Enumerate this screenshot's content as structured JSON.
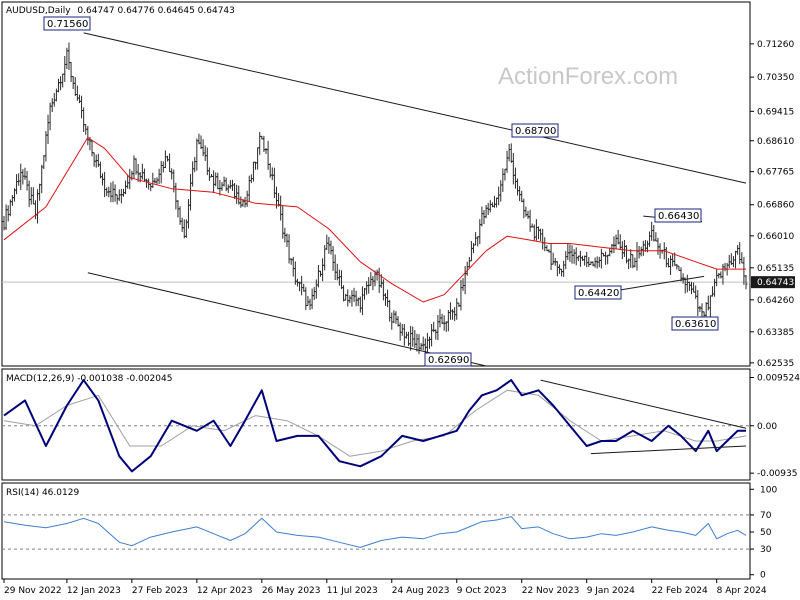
{
  "header": {
    "symbol": "AUDUSD,Daily",
    "ohlc": "0.64747  0.64776  0.64645  0.64743"
  },
  "watermark": "ActionForex.com",
  "colors": {
    "price_bars": "#2a2a2a",
    "ma_line": "#e01010",
    "macd_line": "#00007a",
    "signal_line": "#a0a0a0",
    "rsi_line": "#3f7fd0",
    "channel_line": "#1a1a1a",
    "callout_border": "#1a237e",
    "last_price_box": "#1a1a1a"
  },
  "price_axis": {
    "ticks": [
      "0.71260",
      "0.70350",
      "0.69415",
      "0.68610",
      "0.67765",
      "0.66860",
      "0.66010",
      "0.65135",
      "0.64260",
      "0.63385",
      "0.62535"
    ],
    "last_price": "0.64743"
  },
  "annotations": [
    {
      "label": "0.71560"
    },
    {
      "label": "0.68700"
    },
    {
      "label": "0.66430"
    },
    {
      "label": "0.64420"
    },
    {
      "label": "0.63610"
    },
    {
      "label": "0.62690"
    }
  ],
  "macd_panel": {
    "label": "MACD(12,26,9) -0.001038 -0.002045",
    "ticks": [
      "0.009524",
      "0.00",
      "-0.00935"
    ]
  },
  "rsi_panel": {
    "label": "RSI(14) 46.0129",
    "ticks": [
      "100",
      "70",
      "50",
      "30",
      "0"
    ]
  },
  "x_axis": {
    "labels": [
      "29 Nov 2022",
      "12 Jan 2023",
      "27 Feb 2023",
      "12 Apr 2023",
      "26 May 2023",
      "11 Jul 2023",
      "24 Aug 2023",
      "9 Oct 2023",
      "22 Nov 2023",
      "9 Jan 2024",
      "22 Feb 2024",
      "8 Apr 2024"
    ]
  },
  "chart_data": [
    {
      "type": "line",
      "panel": "price",
      "ylim": [
        0.6245,
        0.7235
      ],
      "x_start": 0,
      "x_end": 354,
      "x_tick_indices": [
        0,
        30,
        61,
        92,
        123,
        154,
        185,
        216,
        247,
        278,
        309,
        340
      ],
      "series": [
        {
          "kind": "price_close",
          "x": [
            0,
            8,
            15,
            22,
            30,
            40,
            48,
            55,
            62,
            70,
            78,
            86,
            92,
            100,
            108,
            115,
            123,
            130,
            138,
            146,
            154,
            162,
            170,
            177,
            185,
            193,
            200,
            208,
            216,
            222,
            228,
            235,
            241,
            247,
            252,
            258,
            264,
            270,
            278,
            285,
            292,
            300,
            309,
            317,
            323,
            328,
            333,
            337,
            340,
            345,
            350,
            354
          ],
          "values": [
            0.664,
            0.678,
            0.666,
            0.695,
            0.709,
            0.686,
            0.674,
            0.67,
            0.68,
            0.674,
            0.682,
            0.66,
            0.686,
            0.675,
            0.673,
            0.669,
            0.688,
            0.67,
            0.65,
            0.64,
            0.658,
            0.644,
            0.642,
            0.65,
            0.638,
            0.632,
            0.63,
            0.636,
            0.64,
            0.654,
            0.665,
            0.67,
            0.683,
            0.668,
            0.662,
            0.658,
            0.65,
            0.656,
            0.653,
            0.654,
            0.658,
            0.653,
            0.66,
            0.653,
            0.649,
            0.645,
            0.638,
            0.642,
            0.648,
            0.652,
            0.656,
            0.6474
          ]
        },
        {
          "kind": "moving_average",
          "x": [
            0,
            20,
            40,
            48,
            60,
            80,
            100,
            120,
            140,
            155,
            170,
            185,
            200,
            210,
            220,
            230,
            240,
            250,
            260,
            270,
            285,
            300,
            315,
            330,
            340,
            354
          ],
          "values": [
            0.659,
            0.668,
            0.687,
            0.684,
            0.676,
            0.673,
            0.672,
            0.669,
            0.668,
            0.662,
            0.653,
            0.647,
            0.642,
            0.644,
            0.65,
            0.656,
            0.66,
            0.659,
            0.658,
            0.658,
            0.657,
            0.656,
            0.656,
            0.653,
            0.651,
            0.651
          ]
        }
      ],
      "trendlines": [
        {
          "x": [
            38,
            354
          ],
          "values": [
            0.7156,
            0.6745
          ]
        },
        {
          "x": [
            40,
            230
          ],
          "values": [
            0.65,
            0.6245
          ]
        },
        {
          "x": [
            282,
            334
          ],
          "values": [
            0.6442,
            0.649
          ]
        },
        {
          "x": [
            305,
            333
          ],
          "values": [
            0.6655,
            0.664
          ]
        }
      ]
    },
    {
      "type": "line",
      "panel": "macd",
      "ylim": [
        -0.0107,
        0.0108
      ],
      "series": [
        {
          "kind": "macd",
          "x": [
            0,
            10,
            20,
            30,
            38,
            45,
            55,
            61,
            70,
            80,
            92,
            100,
            108,
            115,
            123,
            130,
            140,
            150,
            160,
            170,
            180,
            190,
            200,
            208,
            216,
            222,
            228,
            235,
            242,
            247,
            255,
            262,
            270,
            278,
            285,
            292,
            300,
            309,
            317,
            323,
            330,
            336,
            340,
            345,
            350,
            354
          ],
          "values": [
            0.002,
            0.005,
            -0.004,
            0.004,
            0.009,
            0.005,
            -0.006,
            -0.009,
            -0.006,
            0.001,
            -0.001,
            0.001,
            -0.004,
            0.001,
            0.007,
            -0.003,
            -0.002,
            -0.002,
            -0.007,
            -0.008,
            -0.006,
            -0.002,
            -0.003,
            -0.002,
            -0.001,
            0.003,
            0.006,
            0.007,
            0.009,
            0.006,
            0.007,
            0.004,
            0.0,
            -0.004,
            -0.003,
            -0.003,
            -0.001,
            -0.003,
            0.0,
            -0.002,
            -0.005,
            -0.001,
            -0.005,
            -0.003,
            -0.001,
            -0.001
          ]
        },
        {
          "kind": "signal",
          "x": [
            0,
            15,
            30,
            45,
            60,
            75,
            90,
            105,
            120,
            135,
            150,
            165,
            180,
            195,
            210,
            225,
            240,
            255,
            270,
            285,
            300,
            315,
            330,
            340,
            354
          ],
          "values": [
            0.001,
            0.0,
            0.004,
            0.006,
            -0.004,
            -0.004,
            0.0,
            -0.001,
            0.002,
            0.001,
            -0.002,
            -0.006,
            -0.005,
            -0.003,
            -0.002,
            0.003,
            0.007,
            0.006,
            0.001,
            -0.003,
            -0.002,
            -0.001,
            -0.003,
            -0.003,
            -0.002
          ]
        }
      ],
      "trendlines": [
        {
          "x": [
            256,
            354
          ],
          "values": [
            0.009,
            -0.0005
          ]
        },
        {
          "x": [
            280,
            354
          ],
          "values": [
            -0.0055,
            -0.004
          ]
        }
      ]
    },
    {
      "type": "line",
      "panel": "rsi",
      "ylim": [
        -5,
        105
      ],
      "series": [
        {
          "kind": "rsi",
          "x": [
            0,
            10,
            20,
            30,
            38,
            45,
            55,
            61,
            70,
            80,
            92,
            100,
            108,
            115,
            123,
            130,
            140,
            150,
            160,
            170,
            180,
            190,
            200,
            208,
            216,
            222,
            228,
            235,
            242,
            247,
            255,
            262,
            270,
            278,
            285,
            292,
            300,
            309,
            317,
            323,
            330,
            336,
            340,
            345,
            350,
            354
          ],
          "values": [
            62,
            58,
            55,
            60,
            66,
            60,
            38,
            34,
            44,
            50,
            56,
            48,
            40,
            48,
            66,
            50,
            46,
            44,
            38,
            32,
            40,
            44,
            42,
            48,
            50,
            56,
            62,
            64,
            68,
            54,
            56,
            48,
            42,
            44,
            48,
            46,
            50,
            56,
            52,
            50,
            46,
            60,
            42,
            48,
            52,
            46
          ]
        }
      ]
    }
  ]
}
